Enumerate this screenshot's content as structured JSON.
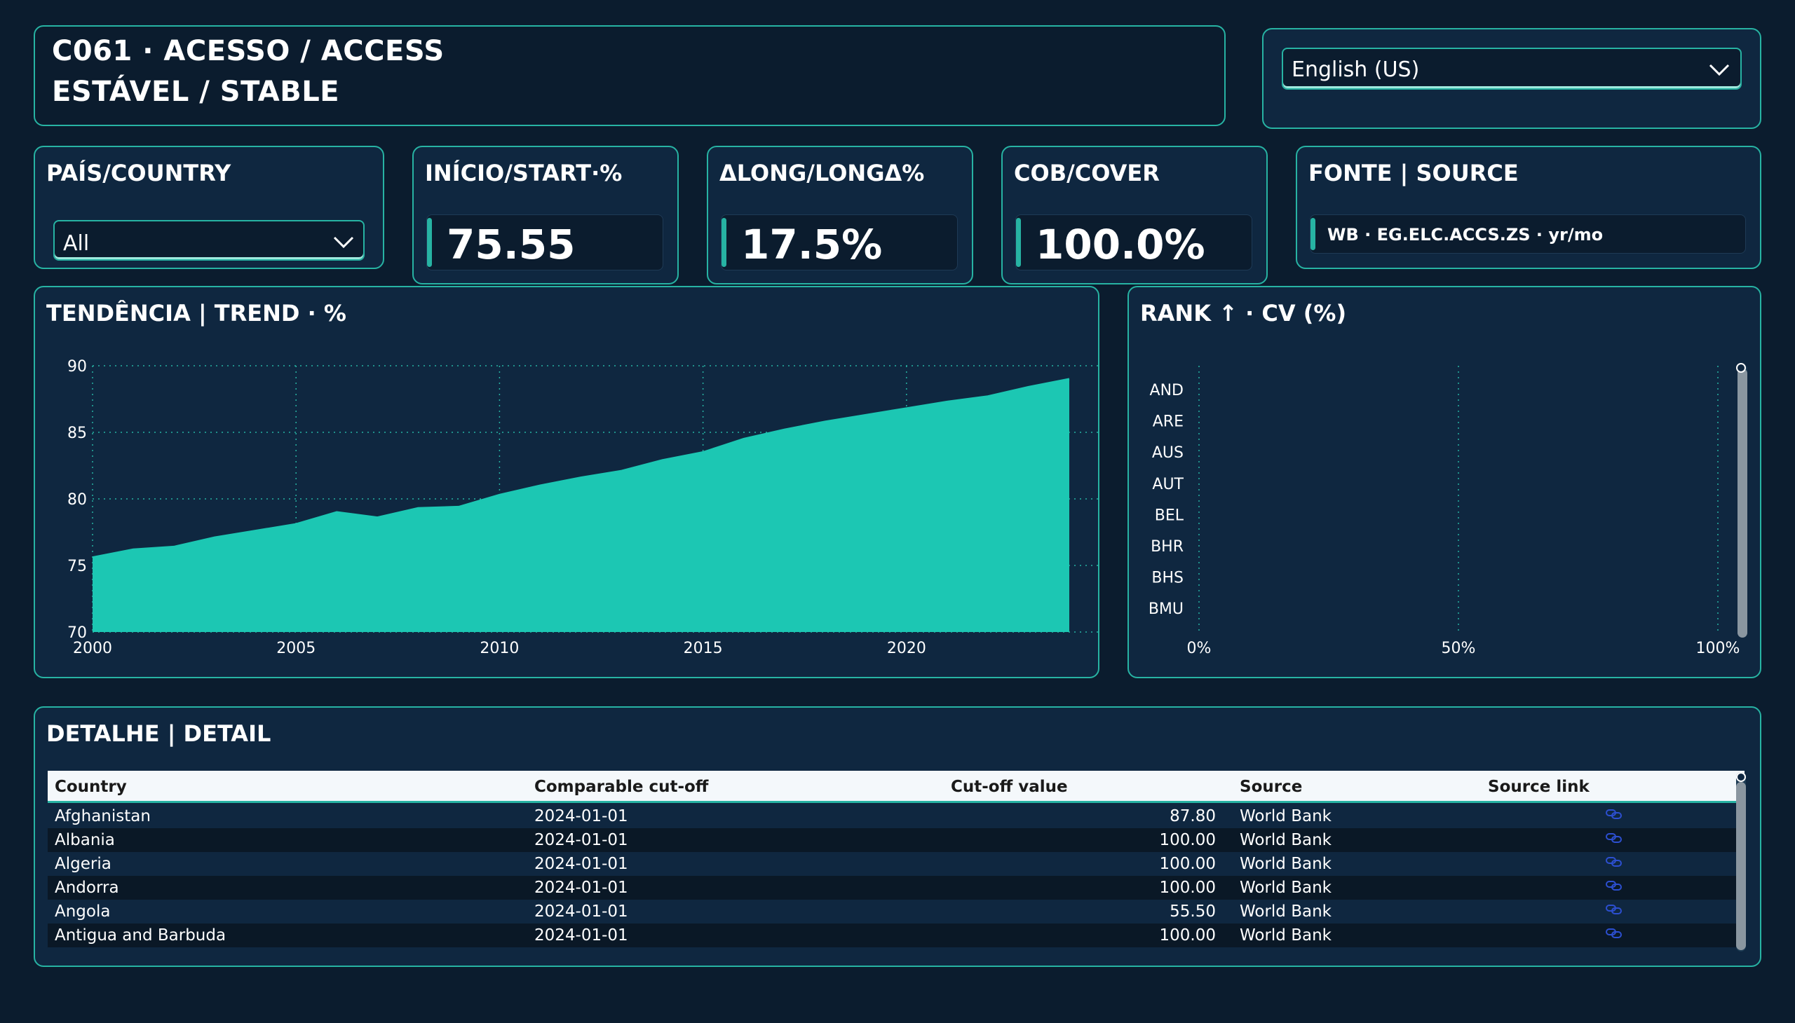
{
  "header": {
    "title_line1": "C061 · ACESSO / ACCESS",
    "title_line2": "ESTÁVEL / STABLE"
  },
  "language_select": {
    "value": "English (US)"
  },
  "country_filter": {
    "title": "PAÍS/COUNTRY",
    "value": "All"
  },
  "kpis": [
    {
      "title": "INÍCIO/START·%",
      "value": "75.55"
    },
    {
      "title": "ΔLONG/LONGΔ%",
      "value": "17.5%"
    },
    {
      "title": "COB/COVER",
      "value": "100.0%"
    }
  ],
  "source_card": {
    "title": "FONTE | SOURCE",
    "value": "WB · EG.ELC.ACCS.ZS · yr/mo"
  },
  "trend_chart": {
    "title": "TENDÊNCIA | TREND · %",
    "chart_data": {
      "type": "area",
      "x": [
        2000,
        2001,
        2002,
        2003,
        2004,
        2005,
        2006,
        2007,
        2008,
        2009,
        2010,
        2011,
        2012,
        2013,
        2014,
        2015,
        2016,
        2017,
        2018,
        2019,
        2020,
        2021,
        2022,
        2023,
        2024
      ],
      "y": [
        75.6,
        76.2,
        76.4,
        77.1,
        77.6,
        78.1,
        79.0,
        78.6,
        79.3,
        79.4,
        80.3,
        81.0,
        81.6,
        82.1,
        82.9,
        83.5,
        84.5,
        85.2,
        85.8,
        86.3,
        86.8,
        87.3,
        87.7,
        88.4,
        89.0
      ],
      "ylim": [
        70,
        90
      ],
      "xlim": [
        2000,
        2024
      ],
      "yticks": [
        "70",
        "75",
        "80",
        "85",
        "90"
      ],
      "xticks": [
        "2000",
        "2005",
        "2010",
        "2015",
        "2020"
      ],
      "color": "#1cc7b3",
      "grid": true
    }
  },
  "rank_chart": {
    "title": "RANK ↑ · CV (%)",
    "chart_data": {
      "type": "bar",
      "categories": [
        "AND",
        "ARE",
        "AUS",
        "AUT",
        "BEL",
        "BHR",
        "BHS",
        "BMU"
      ],
      "values": [
        0,
        0,
        0,
        0,
        0,
        0,
        0,
        0
      ],
      "xticks": [
        "0%",
        "50%",
        "100%"
      ],
      "xlim": [
        0,
        100
      ]
    }
  },
  "detail_table": {
    "title": "DETALHE | DETAIL",
    "columns": [
      "Country",
      "Comparable cut-off",
      "Cut-off value",
      "Source",
      "Source link"
    ],
    "rows": [
      {
        "country": "Afghanistan",
        "cutoff": "2024-01-01",
        "value": "87.80",
        "source": "World Bank"
      },
      {
        "country": "Albania",
        "cutoff": "2024-01-01",
        "value": "100.00",
        "source": "World Bank"
      },
      {
        "country": "Algeria",
        "cutoff": "2024-01-01",
        "value": "100.00",
        "source": "World Bank"
      },
      {
        "country": "Andorra",
        "cutoff": "2024-01-01",
        "value": "100.00",
        "source": "World Bank"
      },
      {
        "country": "Angola",
        "cutoff": "2024-01-01",
        "value": "55.50",
        "source": "World Bank"
      },
      {
        "country": "Antigua and Barbuda",
        "cutoff": "2024-01-01",
        "value": "100.00",
        "source": "World Bank"
      }
    ]
  },
  "colors": {
    "background": "#0b1c2e",
    "card": "#0f2740",
    "accent": "#27b3a3",
    "area": "#1cc7b3",
    "link": "#2c4fd0"
  }
}
